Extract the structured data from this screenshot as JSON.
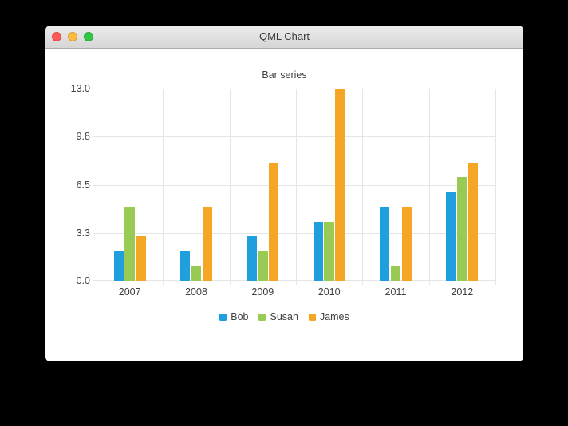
{
  "window": {
    "title": "QML Chart",
    "controls": [
      {
        "name": "close",
        "color": "#fc5b57",
        "border": "#df423d"
      },
      {
        "name": "minimize",
        "color": "#fdbc40",
        "border": "#df9b2c"
      },
      {
        "name": "zoom",
        "color": "#33c748",
        "border": "#1ea733"
      }
    ]
  },
  "chart_data": {
    "type": "bar",
    "title": "Bar series",
    "categories": [
      "2007",
      "2008",
      "2009",
      "2010",
      "2011",
      "2012"
    ],
    "series": [
      {
        "name": "Bob",
        "color": "#209fdf",
        "values": [
          2,
          2,
          3,
          4,
          5,
          6
        ]
      },
      {
        "name": "Susan",
        "color": "#99ca53",
        "values": [
          5,
          1,
          2,
          4,
          1,
          7
        ]
      },
      {
        "name": "James",
        "color": "#f6a625",
        "values": [
          3,
          5,
          8,
          13,
          5,
          8
        ]
      }
    ],
    "y_ticks": [
      {
        "label": "0.0",
        "value": 0
      },
      {
        "label": "3.3",
        "value": 3.25
      },
      {
        "label": "6.5",
        "value": 6.5
      },
      {
        "label": "9.8",
        "value": 9.75
      },
      {
        "label": "13.0",
        "value": 13
      }
    ],
    "ylim": [
      0,
      13
    ],
    "grid": true,
    "legend_position": "bottom",
    "bar_width_ratio": 0.5
  },
  "colors": {
    "desktop_background": "#000000",
    "gridline": "#e5e5e5",
    "axis_label": "#3f3f41",
    "chart_title": "#404040",
    "titlebar_text": "#3b3b3b"
  }
}
